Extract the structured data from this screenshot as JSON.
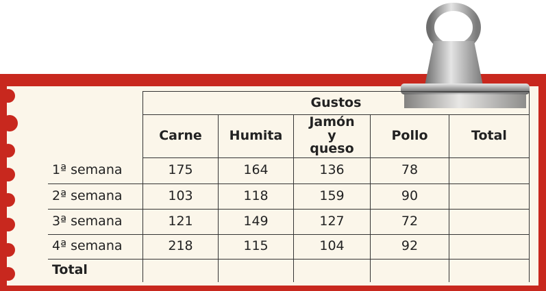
{
  "table": {
    "group_header": "Gustos",
    "columns": [
      "Carne",
      "Humita",
      "Jamón y queso",
      "Pollo",
      "Total"
    ],
    "rows": [
      [
        "1ª semana",
        175,
        164,
        136,
        78
      ],
      [
        "2ª semana",
        103,
        118,
        159,
        90
      ],
      [
        "3ª semana",
        121,
        149,
        127,
        72
      ],
      [
        "4ª semana",
        218,
        115,
        104,
        92
      ],
      [
        "Total"
      ]
    ]
  }
}
